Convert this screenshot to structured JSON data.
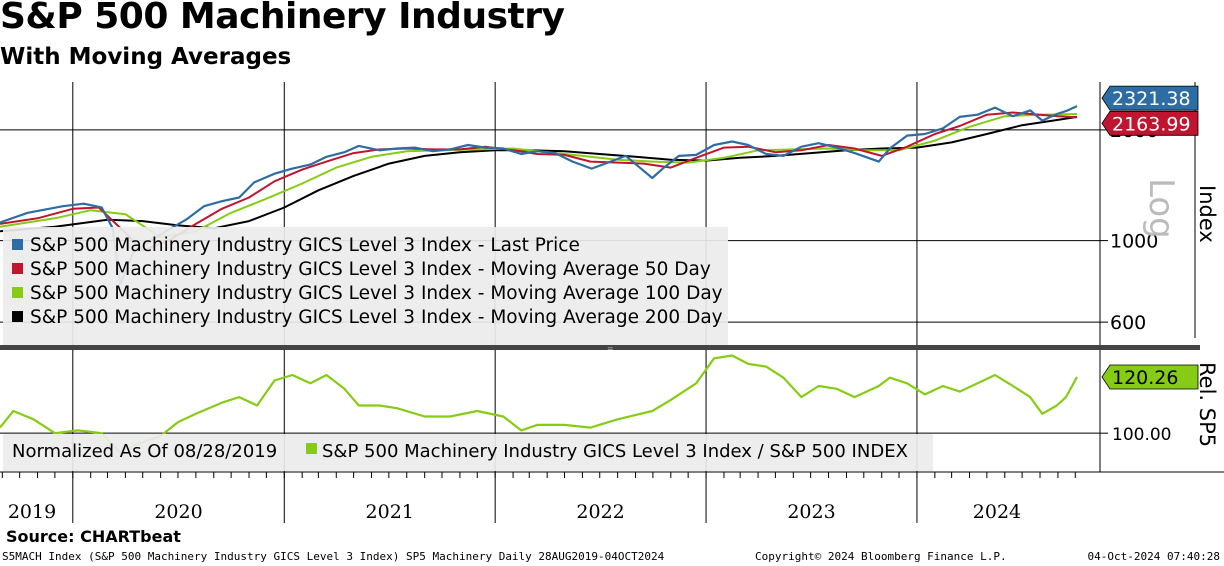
{
  "title": "S&P 500 Machinery Industry",
  "subtitle": "With Moving Averages",
  "source": "Source: CHARTbeat",
  "footer": {
    "left": "S5MACH Index (S&P 500 Machinery Industry GICS Level 3 Index) SP5 Machinery  Daily 28AUG2019-04OCT2024",
    "middle": "Copyright© 2024 Bloomberg Finance L.P.",
    "right": "04-Oct-2024 07:40:28"
  },
  "colors": {
    "price": "#2e6da4",
    "ma50": "#c0152f",
    "ma100": "#86cc14",
    "ma200": "#000000",
    "ratio": "#86cc14"
  },
  "chart_data": [
    {
      "type": "line",
      "panel": "upper",
      "scale": "log",
      "ylabel": "Index",
      "scale_label": "Log",
      "yticks": [
        600,
        1000,
        2000
      ],
      "ylim": [
        520,
        2700
      ],
      "xlim": [
        "2019-08-28",
        "2024-10-04"
      ],
      "year_labels": [
        "2019",
        "2020",
        "2021",
        "2022",
        "2023",
        "2024"
      ],
      "year_dividers": [
        "2020-01-01",
        "2021-01-01",
        "2022-01-01",
        "2023-01-01",
        "2024-01-01"
      ],
      "last_values": [
        {
          "series": "S&P 500 Machinery Industry GICS Level 3 Index - Last Price",
          "label": "2321.38",
          "value": 2321.38
        },
        {
          "series": "S&P 500 Machinery Industry GICS Level 3 Index - Moving Average 50 Day",
          "label": "2163.99",
          "value": 2163.99
        }
      ],
      "series": [
        {
          "name": "S&P 500 Machinery Industry GICS Level 3 Index - Last Price",
          "color": "#2e6da4",
          "x": [
            "2019-08-28",
            "2019-10-15",
            "2019-12-15",
            "2020-01-20",
            "2020-02-20",
            "2020-03-10",
            "2020-03-23",
            "2020-04-15",
            "2020-05-15",
            "2020-06-10",
            "2020-07-15",
            "2020-08-15",
            "2020-09-15",
            "2020-10-15",
            "2020-11-10",
            "2020-12-15",
            "2021-01-15",
            "2021-02-15",
            "2021-03-15",
            "2021-04-15",
            "2021-05-10",
            "2021-06-15",
            "2021-07-15",
            "2021-08-15",
            "2021-09-15",
            "2021-10-15",
            "2021-11-15",
            "2021-12-15",
            "2022-01-15",
            "2022-02-15",
            "2022-03-15",
            "2022-04-15",
            "2022-05-15",
            "2022-06-17",
            "2022-07-15",
            "2022-08-15",
            "2022-09-30",
            "2022-10-20",
            "2022-11-15",
            "2022-12-15",
            "2023-01-15",
            "2023-02-15",
            "2023-03-15",
            "2023-04-15",
            "2023-05-15",
            "2023-06-15",
            "2023-07-15",
            "2023-08-15",
            "2023-09-15",
            "2023-10-27",
            "2023-11-15",
            "2023-12-15",
            "2024-01-15",
            "2024-02-15",
            "2024-03-15",
            "2024-04-15",
            "2024-05-15",
            "2024-06-15",
            "2024-07-15",
            "2024-08-05",
            "2024-08-30",
            "2024-09-15",
            "2024-10-04"
          ],
          "y": [
            1120,
            1190,
            1240,
            1260,
            1230,
            1080,
            760,
            930,
            1000,
            1060,
            1140,
            1240,
            1280,
            1310,
            1440,
            1520,
            1570,
            1610,
            1690,
            1740,
            1810,
            1760,
            1780,
            1790,
            1750,
            1770,
            1820,
            1790,
            1780,
            1720,
            1750,
            1730,
            1640,
            1570,
            1630,
            1700,
            1480,
            1580,
            1700,
            1710,
            1820,
            1860,
            1820,
            1720,
            1700,
            1800,
            1840,
            1790,
            1730,
            1640,
            1780,
            1930,
            1950,
            2020,
            2170,
            2200,
            2300,
            2180,
            2260,
            2120,
            2210,
            2250,
            2321.38
          ]
        },
        {
          "name": "S&P 500 Machinery Industry GICS Level 3 Index - Moving Average 50 Day",
          "color": "#c0152f",
          "x": [
            "2019-08-28",
            "2019-11-01",
            "2020-01-01",
            "2020-02-15",
            "2020-04-01",
            "2020-05-01",
            "2020-06-15",
            "2020-08-01",
            "2020-09-15",
            "2020-11-01",
            "2020-12-15",
            "2021-02-01",
            "2021-03-15",
            "2021-05-01",
            "2021-06-15",
            "2021-08-01",
            "2021-09-15",
            "2021-11-01",
            "2021-12-15",
            "2022-02-01",
            "2022-03-15",
            "2022-05-01",
            "2022-06-15",
            "2022-08-01",
            "2022-09-15",
            "2022-11-01",
            "2022-12-15",
            "2023-02-01",
            "2023-03-15",
            "2023-05-01",
            "2023-06-15",
            "2023-08-01",
            "2023-09-15",
            "2023-11-01",
            "2023-12-15",
            "2024-02-01",
            "2024-03-15",
            "2024-05-01",
            "2024-06-15",
            "2024-08-01",
            "2024-09-01",
            "2024-10-04"
          ],
          "y": [
            1110,
            1150,
            1220,
            1230,
            1050,
            940,
            1000,
            1110,
            1220,
            1310,
            1450,
            1560,
            1640,
            1730,
            1770,
            1780,
            1770,
            1770,
            1800,
            1760,
            1720,
            1710,
            1640,
            1630,
            1620,
            1580,
            1680,
            1790,
            1800,
            1740,
            1760,
            1820,
            1780,
            1700,
            1800,
            1950,
            2050,
            2200,
            2230,
            2200,
            2180,
            2163.99
          ]
        },
        {
          "name": "S&P 500 Machinery Industry GICS Level 3 Index - Moving Average 100 Day",
          "color": "#86cc14",
          "x": [
            "2019-08-28",
            "2019-12-01",
            "2020-02-01",
            "2020-04-01",
            "2020-06-01",
            "2020-08-01",
            "2020-10-01",
            "2020-12-01",
            "2021-02-01",
            "2021-04-01",
            "2021-06-01",
            "2021-08-01",
            "2021-10-01",
            "2021-12-01",
            "2022-02-01",
            "2022-04-01",
            "2022-06-01",
            "2022-08-01",
            "2022-10-01",
            "2022-12-01",
            "2023-02-01",
            "2023-04-01",
            "2023-06-01",
            "2023-08-01",
            "2023-10-01",
            "2023-12-01",
            "2024-02-01",
            "2024-04-01",
            "2024-06-01",
            "2024-08-01",
            "2024-10-04"
          ],
          "y": [
            1090,
            1150,
            1210,
            1180,
            1020,
            1060,
            1190,
            1300,
            1430,
            1580,
            1690,
            1750,
            1760,
            1770,
            1780,
            1740,
            1700,
            1660,
            1640,
            1630,
            1680,
            1760,
            1770,
            1780,
            1760,
            1760,
            1870,
            2040,
            2180,
            2200,
            2210
          ]
        },
        {
          "name": "S&P 500 Machinery Industry GICS Level 3 Index - Moving Average 200 Day",
          "color": "#000000",
          "x": [
            "2019-08-28",
            "2019-12-01",
            "2020-03-01",
            "2020-05-01",
            "2020-07-01",
            "2020-09-01",
            "2020-11-01",
            "2021-01-01",
            "2021-03-01",
            "2021-05-01",
            "2021-07-01",
            "2021-09-01",
            "2021-11-01",
            "2022-01-01",
            "2022-03-01",
            "2022-05-01",
            "2022-07-01",
            "2022-09-01",
            "2022-11-01",
            "2023-01-01",
            "2023-03-01",
            "2023-05-01",
            "2023-07-01",
            "2023-09-01",
            "2023-11-01",
            "2024-01-01",
            "2024-03-01",
            "2024-05-01",
            "2024-07-01",
            "2024-09-01",
            "2024-10-04"
          ],
          "y": [
            1060,
            1090,
            1140,
            1130,
            1100,
            1080,
            1130,
            1230,
            1370,
            1500,
            1620,
            1700,
            1740,
            1760,
            1760,
            1750,
            1720,
            1690,
            1660,
            1650,
            1680,
            1700,
            1730,
            1760,
            1780,
            1790,
            1850,
            1950,
            2060,
            2130,
            2170
          ]
        }
      ],
      "legend": [
        "S&P 500 Machinery Industry GICS Level 3 Index - Last Price",
        "S&P 500 Machinery Industry GICS Level 3 Index - Moving Average 50 Day",
        "S&P 500 Machinery Industry GICS Level 3 Index - Moving Average 100 Day",
        "S&P 500 Machinery Industry GICS Level 3 Index - Moving Average 200 Day"
      ]
    },
    {
      "type": "line",
      "panel": "lower",
      "ylabel": "Rel. SP5",
      "yticks": [
        100
      ],
      "ytick_labels": [
        "100.00"
      ],
      "ylim": [
        86,
        130
      ],
      "last_value": {
        "label": "120.26",
        "value": 120.26
      },
      "legend_prefix": "Normalized As Of 08/28/2019",
      "legend": [
        "S&P 500 Machinery Industry GICS Level 3 Index / S&P 500 INDEX"
      ],
      "series": [
        {
          "name": "S&P 500 Machinery Industry GICS Level 3 Index / S&P 500 INDEX",
          "color": "#86cc14",
          "x": [
            "2019-08-28",
            "2019-09-20",
            "2019-10-25",
            "2019-12-01",
            "2020-01-10",
            "2020-02-20",
            "2020-03-23",
            "2020-04-20",
            "2020-06-01",
            "2020-07-01",
            "2020-08-01",
            "2020-09-15",
            "2020-10-15",
            "2020-11-15",
            "2020-12-15",
            "2021-01-15",
            "2021-02-15",
            "2021-03-15",
            "2021-04-15",
            "2021-05-10",
            "2021-06-15",
            "2021-07-15",
            "2021-09-01",
            "2021-10-15",
            "2021-12-01",
            "2022-01-15",
            "2022-02-15",
            "2022-03-15",
            "2022-05-01",
            "2022-06-15",
            "2022-08-01",
            "2022-09-30",
            "2022-11-01",
            "2022-12-15",
            "2023-01-15",
            "2023-02-15",
            "2023-03-15",
            "2023-04-15",
            "2023-05-15",
            "2023-06-15",
            "2023-07-15",
            "2023-08-15",
            "2023-09-15",
            "2023-10-27",
            "2023-11-15",
            "2023-12-15",
            "2024-01-15",
            "2024-02-15",
            "2024-03-15",
            "2024-04-15",
            "2024-05-15",
            "2024-06-15",
            "2024-07-15",
            "2024-08-05",
            "2024-08-30",
            "2024-09-15",
            "2024-10-04"
          ],
          "y": [
            102,
            108,
            105,
            100,
            101,
            100,
            93,
            96,
            99,
            104,
            107,
            111,
            113,
            110,
            119,
            121,
            118,
            121,
            116,
            110,
            110,
            109,
            106,
            106,
            108,
            106,
            101,
            103,
            103,
            102,
            105,
            108,
            112,
            118,
            127,
            128,
            125,
            124,
            120,
            113,
            117,
            116,
            113,
            117,
            120,
            118,
            114,
            117,
            115,
            118,
            121,
            117,
            113,
            107,
            110,
            113,
            120.26
          ]
        }
      ]
    }
  ]
}
